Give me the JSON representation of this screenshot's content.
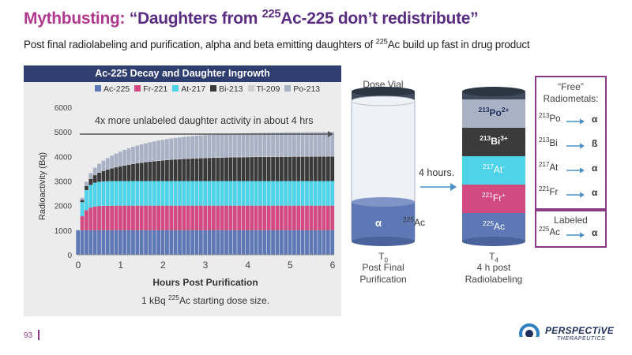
{
  "header": {
    "title_prefix": "Mythbusting:",
    "title_main_pre": "“Daughters from ",
    "title_sup": "225",
    "title_main_post": "Ac-225 don’t redistribute”",
    "subtitle_pre": "Post final radiolabeling and purification, alpha and beta emitting daughters of ",
    "subtitle_sup": "225",
    "subtitle_post": "Ac build up fast in drug product"
  },
  "chart_data": {
    "type": "bar",
    "title": "Ac-225 Decay and Daughter Ingrowth",
    "xlabel": "Hours Post Purification",
    "ylabel": "Radioactivity (Bq)",
    "xlim": [
      0,
      6
    ],
    "ylim": [
      0,
      6000
    ],
    "x_ticks": [
      0,
      1,
      2,
      3,
      4,
      5,
      6
    ],
    "y_ticks": [
      0,
      1000,
      2000,
      3000,
      4000,
      5000,
      6000
    ],
    "stacked": true,
    "grid": false,
    "legend_position": "top",
    "model": "cumulative daughter ingrowth; each daughter approaches 1000 Bq (secular equilibrium) from 1 kBq parent",
    "series": [
      {
        "name": "Ac-225",
        "color": "#5d78b4",
        "plateau": 1000,
        "half_life_h": 0
      },
      {
        "name": "Fr-221",
        "color": "#d14b82",
        "plateau": 1000,
        "half_life_h": 0.0817
      },
      {
        "name": "At-217",
        "color": "#4fd3e8",
        "plateau": 1000,
        "half_life_h": 0.0817
      },
      {
        "name": "Bi-213",
        "color": "#3a3a3a",
        "plateau": 1000,
        "half_life_h": 0.76
      },
      {
        "name": "Tl-209",
        "color": "#cfcfcf",
        "plateau": 20,
        "half_life_h": 0.76
      },
      {
        "name": "Po-213",
        "color": "#a9b1c4",
        "plateau": 980,
        "half_life_h": 0.76
      }
    ],
    "annotation": "4x more unlabeled daughter activity in about 4 hrs",
    "footnote_pre": "1 kBq ",
    "footnote_sup": "225",
    "footnote_post": "Ac starting dose size."
  },
  "vials": {
    "left": {
      "title": "Dose Vial",
      "symbol": "α",
      "isotope_sup": "225",
      "isotope": "Ac",
      "time_label": "T",
      "time_sub": "0",
      "caption_line1": "Post Final",
      "caption_line2": "Purification"
    },
    "arrow_label": "4 hours.",
    "right": {
      "time_label": "T",
      "time_sub": "4",
      "caption_line1": "4 h post",
      "caption_line2": "Radiolabeling",
      "segments": [
        {
          "sup": "213",
          "name": "Po",
          "charge": "2+",
          "color": "#a9b1c4",
          "text_color": "#1e2f5c"
        },
        {
          "sup": "213",
          "name": "Bi",
          "charge": "3+",
          "color": "#3b3b3b",
          "text_color": "#ffffff"
        },
        {
          "sup": "217",
          "name": "At",
          "charge": "-",
          "color": "#4fd3e8",
          "text_color": "#ffffff"
        },
        {
          "sup": "221",
          "name": "Fr",
          "charge": "+",
          "color": "#d14b82",
          "text_color": "#ffffff"
        },
        {
          "sup": "225",
          "name": "Ac",
          "charge": "",
          "color": "#5d78b4",
          "text_color": "#ffffff"
        }
      ]
    }
  },
  "free_box": {
    "title_line1": "“Free”",
    "title_line2": "Radiometals:",
    "rows": [
      {
        "sup": "213",
        "name": "Po",
        "emission": "α"
      },
      {
        "sup": "213",
        "name": "Bi",
        "emission": "ß"
      },
      {
        "sup": "217",
        "name": "At",
        "emission": "α"
      },
      {
        "sup": "221",
        "name": "Fr",
        "emission": "α"
      }
    ]
  },
  "labeled_box": {
    "title": "Labeled",
    "row": {
      "sup": "225",
      "name": "Ac",
      "emission": "α"
    }
  },
  "footer": {
    "page_number": "93",
    "logo_name": "PERSPECTiVE",
    "logo_sub": "THERAPEUTICS"
  },
  "colors": {
    "title_pink": "#b0388e",
    "title_purple": "#5a2d82",
    "accent_box": "#8a3a85",
    "arrow_blue": "#4a90c8"
  }
}
